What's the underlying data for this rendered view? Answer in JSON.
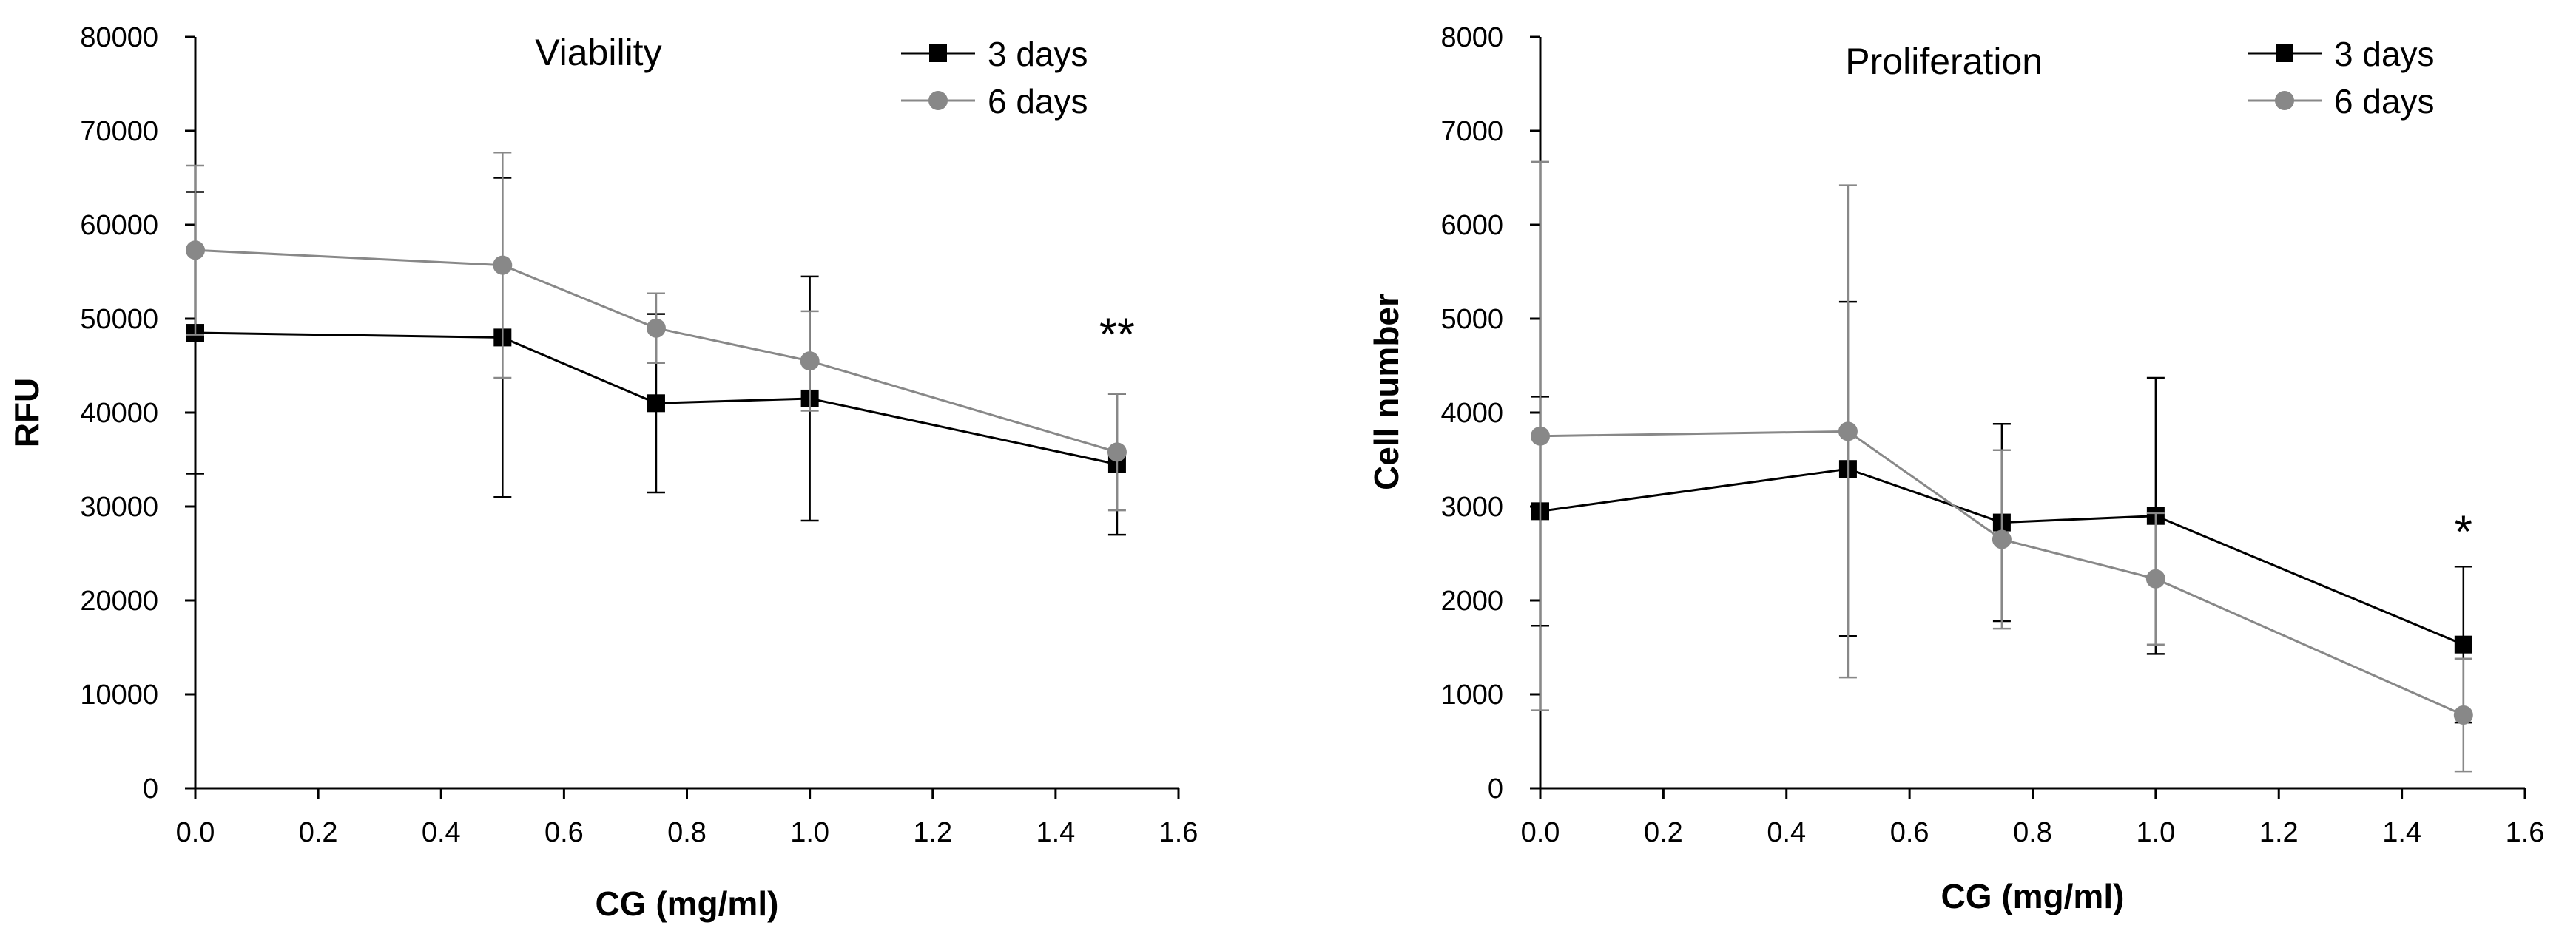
{
  "chart_data": [
    {
      "type": "line",
      "title": "Viability",
      "xlabel": "CG (mg/ml)",
      "ylabel": "RFU",
      "xlim": [
        0,
        1.6
      ],
      "ylim": [
        0,
        80000
      ],
      "x_ticks": [
        0.0,
        0.2,
        0.4,
        0.6,
        0.8,
        1.0,
        1.2,
        1.4,
        1.6
      ],
      "x_tick_labels": [
        "0.0",
        "0.2",
        "0.4",
        "0.6",
        "0.8",
        "1.0",
        "1.2",
        "1.4",
        "1.6"
      ],
      "y_ticks": [
        0,
        10000,
        20000,
        30000,
        40000,
        50000,
        60000,
        70000,
        80000
      ],
      "y_tick_labels": [
        "0",
        "10000",
        "20000",
        "30000",
        "40000",
        "50000",
        "60000",
        "70000",
        "80000"
      ],
      "grid": false,
      "legend_position": "top-right",
      "annotation": {
        "text": "**",
        "x": 1.5,
        "y": 49000
      },
      "series": [
        {
          "name": "3 days",
          "color": "#000000",
          "marker": "square",
          "x": [
            0.0,
            0.5,
            0.75,
            1.0,
            1.5
          ],
          "y": [
            48500,
            48000,
            41000,
            41500,
            34500
          ],
          "err": [
            15000,
            17000,
            9500,
            13000,
            7500
          ]
        },
        {
          "name": "6 days",
          "color": "#888888",
          "marker": "circle",
          "x": [
            0.0,
            0.5,
            0.75,
            1.0,
            1.5
          ],
          "y": [
            57300,
            55700,
            49000,
            45500,
            35800
          ],
          "err": [
            9000,
            12000,
            3700,
            5300,
            6200
          ]
        }
      ]
    },
    {
      "type": "line",
      "title": "Proliferation",
      "xlabel": "CG (mg/ml)",
      "ylabel": "Cell number",
      "xlim": [
        0,
        1.6
      ],
      "ylim": [
        0,
        8000
      ],
      "x_ticks": [
        0.0,
        0.2,
        0.4,
        0.6,
        0.8,
        1.0,
        1.2,
        1.4,
        1.6
      ],
      "x_tick_labels": [
        "0.0",
        "0.2",
        "0.4",
        "0.6",
        "0.8",
        "1.0",
        "1.2",
        "1.4",
        "1.6"
      ],
      "y_ticks": [
        0,
        1000,
        2000,
        3000,
        4000,
        5000,
        6000,
        7000,
        8000
      ],
      "y_tick_labels": [
        "0",
        "1000",
        "2000",
        "3000",
        "4000",
        "5000",
        "6000",
        "7000",
        "8000"
      ],
      "grid": false,
      "legend_position": "top-right",
      "annotation": {
        "text": "*",
        "x": 1.5,
        "y": 2800
      },
      "series": [
        {
          "name": "3 days",
          "color": "#000000",
          "marker": "square",
          "x": [
            0.0,
            0.5,
            0.75,
            1.0,
            1.5
          ],
          "y": [
            2950,
            3400,
            2830,
            2900,
            1530
          ],
          "err": [
            1220,
            1780,
            1050,
            1470,
            830
          ]
        },
        {
          "name": "6 days",
          "color": "#888888",
          "marker": "circle",
          "x": [
            0.0,
            0.5,
            0.75,
            1.0,
            1.5
          ],
          "y": [
            3750,
            3800,
            2650,
            2230,
            780
          ],
          "err": [
            2920,
            2620,
            950,
            700,
            600
          ]
        }
      ]
    }
  ]
}
